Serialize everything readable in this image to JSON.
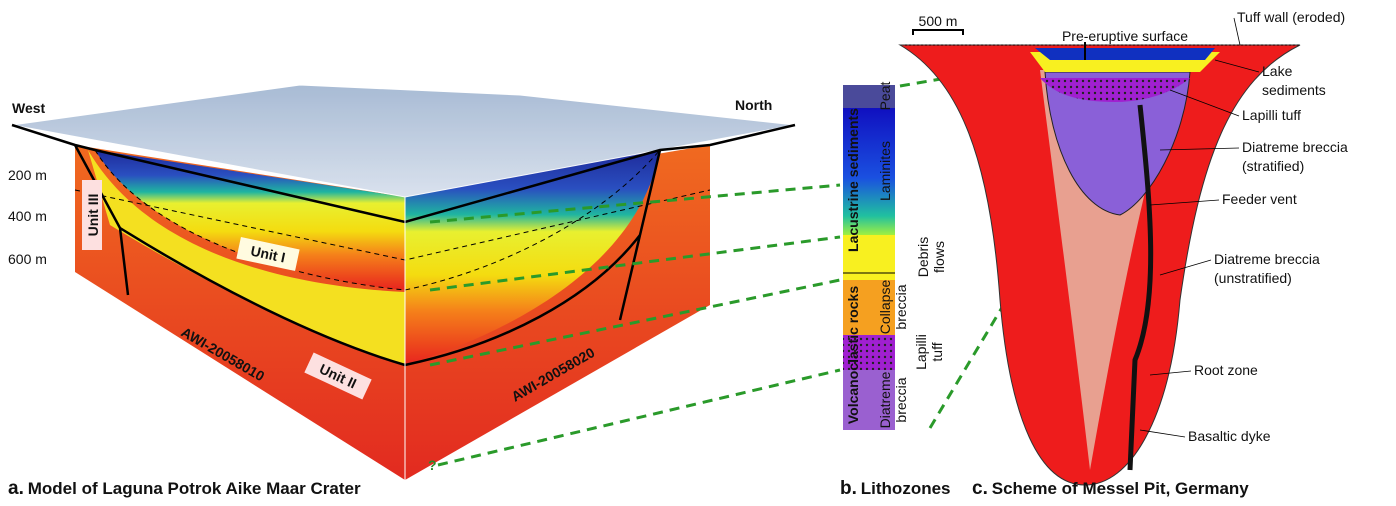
{
  "panel_a": {
    "letter": "a.",
    "caption": "Model of Laguna Potrok Aike Maar Crater",
    "west": "West",
    "north": "North",
    "depths": [
      "200 m",
      "400 m",
      "600 m"
    ],
    "units": [
      "Unit III",
      "Unit I",
      "Unit II"
    ],
    "profiles": [
      "AWI-20058010",
      "AWI-20058020"
    ],
    "question": "?"
  },
  "panel_b": {
    "letter": "b.",
    "caption": "Lithozones",
    "groups": [
      "Lacustrine sediments",
      "Volcanoclastic rocks"
    ],
    "zones": [
      [
        "Peat"
      ],
      [
        "Laminites"
      ],
      [
        "Debris",
        "flows"
      ],
      [
        "Collapse",
        "breccia"
      ],
      [
        "Lapilli",
        "tuff"
      ],
      [
        "Diatreme",
        "breccia"
      ]
    ]
  },
  "panel_c": {
    "letter": "c.",
    "caption": "Scheme of Messel Pit, Germany",
    "scale": "500 m",
    "surface": "Pre-eruptive surface",
    "labels": [
      [
        "Tuff wall (eroded)"
      ],
      [
        "Lake",
        "sediments"
      ],
      [
        "Lapilli tuff"
      ],
      [
        "Diatreme breccia",
        "(stratified)"
      ],
      [
        "Feeder vent"
      ],
      [
        "Diatreme breccia",
        "(unstratified)"
      ],
      [
        "Root zone"
      ],
      [
        "Basaltic dyke"
      ]
    ]
  }
}
